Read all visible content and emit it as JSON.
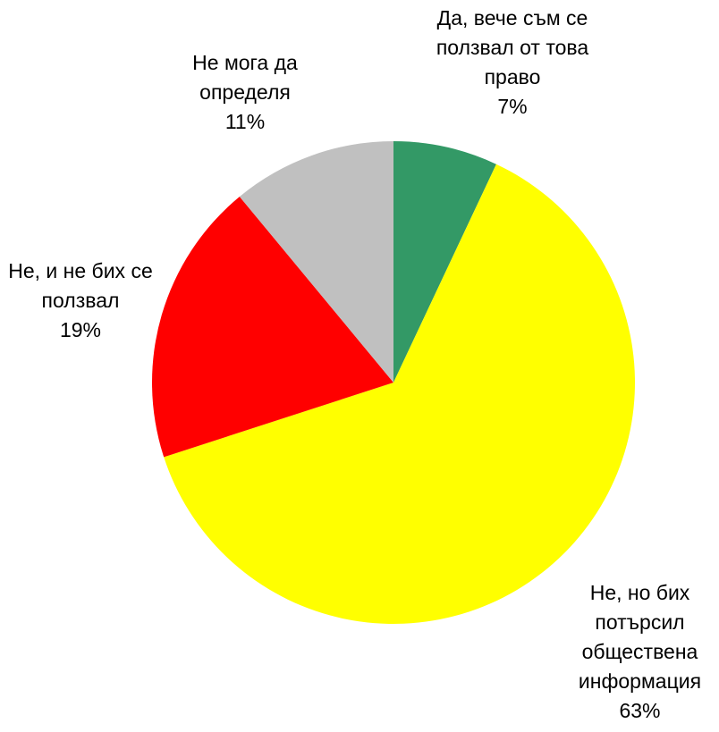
{
  "chart_data": {
    "type": "pie",
    "categories": [
      "Да, вече съм се ползвал от това право",
      "Не, но бих потърсил обществена информация",
      "Не, и не бих се ползвал",
      "Не мога да определя"
    ],
    "values": [
      7,
      63,
      19,
      11
    ],
    "value_labels": [
      "7%",
      "63%",
      "19%",
      "11%"
    ],
    "colors": [
      "#339966",
      "#ffff00",
      "#ff0000",
      "#c0c0c0"
    ]
  }
}
